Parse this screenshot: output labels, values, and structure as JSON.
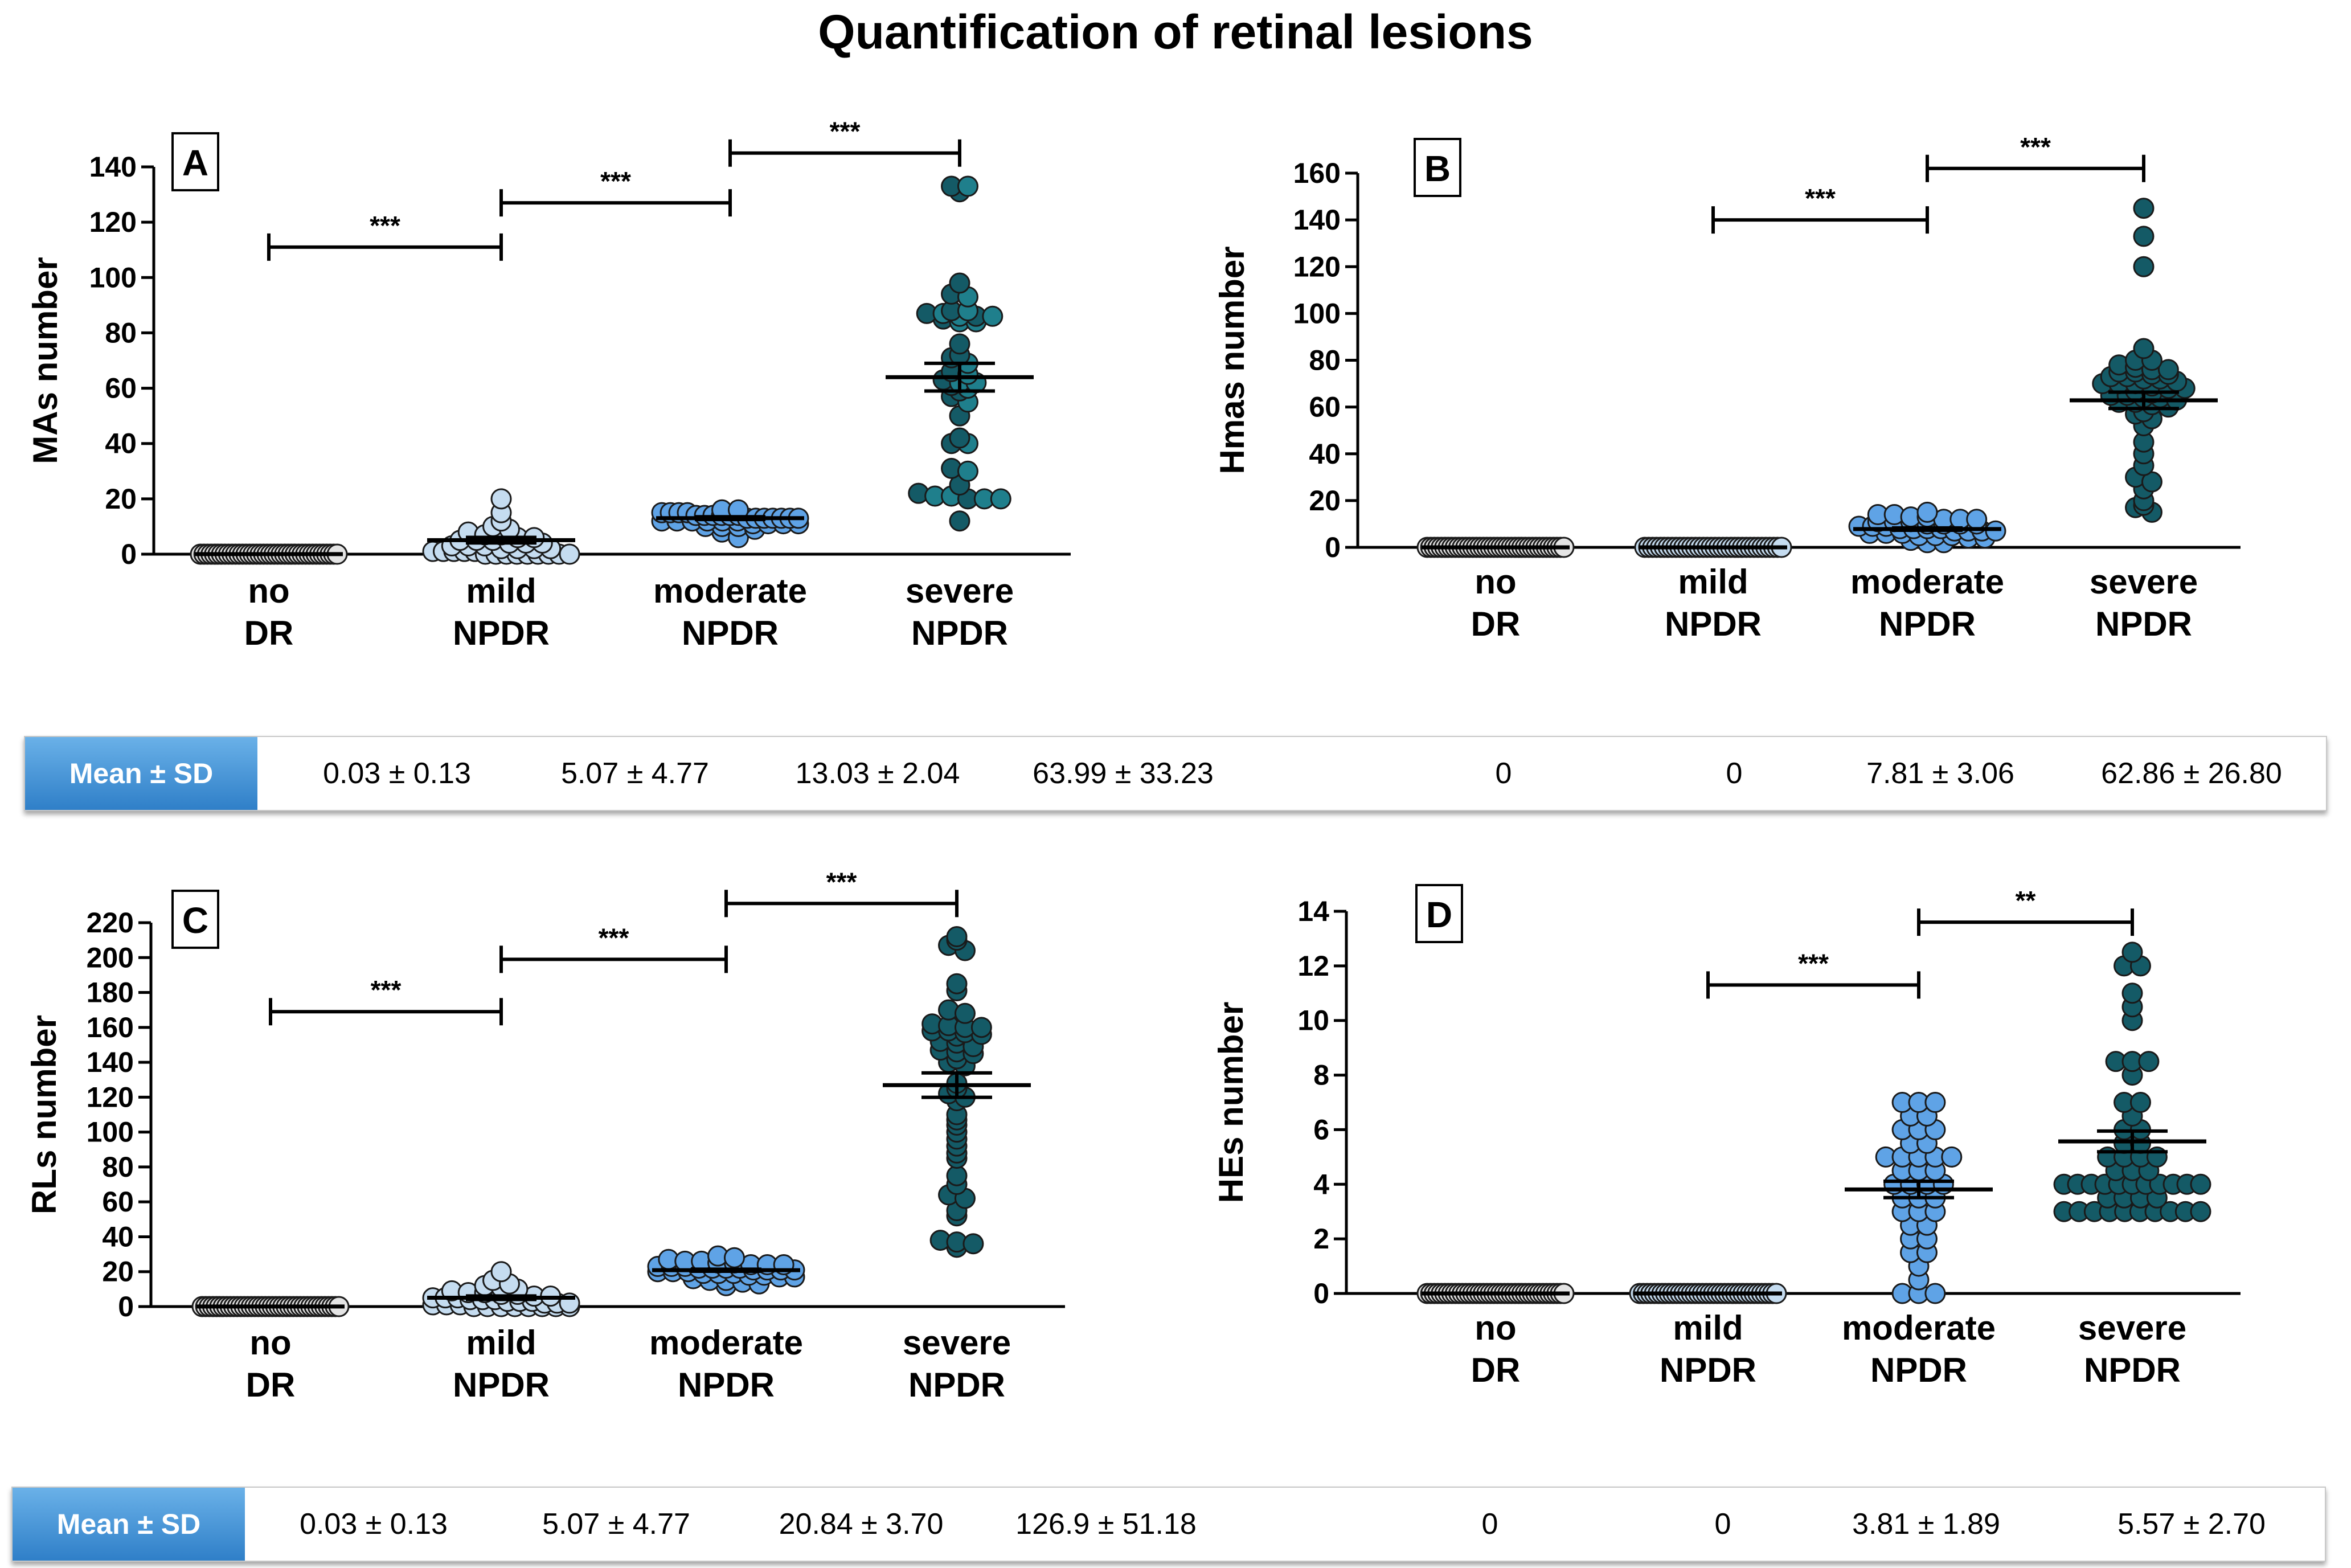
{
  "title": "Quantification of retinal lesions",
  "stats_header": "Mean ± SD",
  "stats_top": [
    "0.03 ± 0.13",
    "5.07 ± 4.77",
    "13.03 ± 2.04",
    "63.99 ± 33.23",
    "0",
    "0",
    "7.81 ± 3.06",
    "62.86 ± 26.80"
  ],
  "stats_bottom": [
    "0.03 ± 0.13",
    "5.07 ± 4.77",
    "20.84 ± 3.70",
    "126.9 ± 51.18",
    "0",
    "0",
    "3.81 ± 1.89",
    "5.57 ± 2.70"
  ],
  "colors": {
    "noDR": "#e4e4e4",
    "mild": "#c5dcf0",
    "moderate": "#5fa3e6",
    "severe_teal": "#1f7f8c",
    "severe_dark": "#145a66",
    "header": "#3a8ad4"
  },
  "chart_data": [
    {
      "panel": "A",
      "type": "scatter",
      "ylabel": "MAs number",
      "categories": [
        [
          "no",
          "DR"
        ],
        [
          "mild",
          "NPDR"
        ],
        [
          "moderate",
          "NPDR"
        ],
        [
          "severe",
          "NPDR"
        ]
      ],
      "ylim": [
        0,
        140
      ],
      "yticks": [
        0,
        20,
        40,
        60,
        80,
        100,
        120,
        140
      ],
      "series": [
        {
          "name": "no DR",
          "color": "#e4e4e4",
          "values": [
            0,
            0,
            0,
            0,
            0,
            0,
            0,
            0,
            0,
            0,
            0,
            0,
            0,
            0,
            0,
            0,
            0,
            0,
            0,
            0,
            0,
            0,
            0,
            0,
            0,
            0,
            0,
            0,
            0,
            0,
            0,
            0,
            0,
            0,
            0,
            0,
            0,
            0,
            0,
            0
          ]
        },
        {
          "name": "mild NPDR",
          "color": "#c5dcf0",
          "values": [
            20,
            15,
            12,
            10,
            9,
            8,
            7,
            7,
            6,
            6,
            5,
            5,
            5,
            4,
            4,
            4,
            3,
            3,
            3,
            2,
            2,
            2,
            2,
            1,
            1,
            1,
            1,
            1,
            0,
            0,
            0,
            0,
            0,
            0,
            0,
            0,
            0
          ]
        },
        {
          "name": "moderate NPDR",
          "color": "#5fa3e6",
          "values": [
            16,
            16,
            15,
            15,
            15,
            15,
            14,
            14,
            14,
            14,
            14,
            14,
            13,
            13,
            13,
            13,
            13,
            13,
            13,
            12,
            12,
            12,
            12,
            12,
            12,
            11,
            11,
            11,
            11,
            10,
            10,
            10,
            9,
            8,
            6
          ]
        },
        {
          "name": "severe NPDR",
          "color": "#1f7f8c",
          "values": [
            133,
            133,
            131,
            98,
            94,
            93,
            88,
            88,
            87,
            87,
            86,
            86,
            86,
            85,
            84,
            84,
            76,
            72,
            71,
            69,
            66,
            65,
            63,
            62,
            62,
            61,
            60,
            59,
            57,
            55,
            50,
            42,
            40,
            40,
            31,
            30,
            25,
            22,
            21,
            21,
            20,
            20,
            20,
            12
          ]
        }
      ],
      "means": [
        0.03,
        5.07,
        13.03,
        63.99
      ],
      "sem": [
        0,
        1,
        0.5,
        5
      ],
      "significance": [
        {
          "from": 0,
          "to": 1,
          "y": 111,
          "label": "***"
        },
        {
          "from": 1,
          "to": 2,
          "y": 127,
          "label": "***"
        },
        {
          "from": 2,
          "to": 3,
          "y": 145,
          "label": "***"
        }
      ]
    },
    {
      "panel": "B",
      "type": "scatter",
      "ylabel": "Hmas number",
      "categories": [
        [
          "no",
          "DR"
        ],
        [
          "mild",
          "NPDR"
        ],
        [
          "moderate",
          "NPDR"
        ],
        [
          "severe",
          "NPDR"
        ]
      ],
      "ylim": [
        0,
        160
      ],
      "yticks": [
        0,
        20,
        40,
        60,
        80,
        100,
        120,
        140,
        160
      ],
      "series": [
        {
          "name": "no DR",
          "color": "#e4e4e4",
          "values": [
            0,
            0,
            0,
            0,
            0,
            0,
            0,
            0,
            0,
            0,
            0,
            0,
            0,
            0,
            0,
            0,
            0,
            0,
            0,
            0,
            0,
            0,
            0,
            0,
            0,
            0,
            0,
            0,
            0,
            0,
            0,
            0,
            0,
            0,
            0,
            0,
            0,
            0,
            0,
            0
          ]
        },
        {
          "name": "mild NPDR",
          "color": "#c5dcf0",
          "values": [
            0,
            0,
            0,
            0,
            0,
            0,
            0,
            0,
            0,
            0,
            0,
            0,
            0,
            0,
            0,
            0,
            0,
            0,
            0,
            0,
            0,
            0,
            0,
            0,
            0,
            0,
            0,
            0,
            0,
            0,
            0,
            0,
            0,
            0,
            0,
            0
          ]
        },
        {
          "name": "moderate NPDR",
          "color": "#5fa3e6",
          "values": [
            15,
            14,
            14,
            13,
            13,
            12,
            12,
            12,
            11,
            11,
            11,
            10,
            10,
            10,
            10,
            9,
            9,
            9,
            8,
            8,
            8,
            8,
            7,
            7,
            7,
            7,
            6,
            6,
            6,
            5,
            5,
            5,
            4,
            4,
            3,
            2,
            2
          ]
        },
        {
          "name": "severe NPDR",
          "color": "#145a66",
          "values": [
            145,
            133,
            120,
            85,
            80,
            80,
            78,
            77,
            76,
            76,
            75,
            75,
            74,
            74,
            73,
            73,
            72,
            72,
            71,
            70,
            70,
            70,
            69,
            68,
            68,
            67,
            66,
            65,
            65,
            64,
            64,
            63,
            62,
            62,
            61,
            60,
            58,
            57,
            55,
            52,
            45,
            40,
            35,
            30,
            28,
            25,
            20,
            18,
            17,
            15
          ]
        }
      ],
      "means": [
        0,
        0,
        7.81,
        62.86
      ],
      "sem": [
        0,
        0,
        0.5,
        3.5
      ],
      "significance": [
        {
          "from": 1,
          "to": 2,
          "y": 140,
          "label": "***"
        },
        {
          "from": 2,
          "to": 3,
          "y": 162,
          "label": "***"
        }
      ]
    },
    {
      "panel": "C",
      "type": "scatter",
      "ylabel": "RLs number",
      "categories": [
        [
          "no",
          "DR"
        ],
        [
          "mild",
          "NPDR"
        ],
        [
          "moderate",
          "NPDR"
        ],
        [
          "severe",
          "NPDR"
        ]
      ],
      "ylim": [
        0,
        220
      ],
      "yticks": [
        0,
        20,
        40,
        60,
        80,
        100,
        120,
        140,
        160,
        180,
        200,
        220
      ],
      "series": [
        {
          "name": "no DR",
          "color": "#e4e4e4",
          "values": [
            0,
            0,
            0,
            0,
            0,
            0,
            0,
            0,
            0,
            0,
            0,
            0,
            0,
            0,
            0,
            0,
            0,
            0,
            0,
            0,
            0,
            0,
            0,
            0,
            0,
            0,
            0,
            0,
            0,
            0,
            0,
            0,
            0,
            0,
            0,
            0,
            0,
            0,
            0,
            0
          ]
        },
        {
          "name": "mild NPDR",
          "color": "#c5dcf0",
          "values": [
            20,
            15,
            13,
            12,
            11,
            10,
            9,
            8,
            8,
            7,
            7,
            6,
            6,
            5,
            5,
            5,
            4,
            4,
            4,
            3,
            3,
            3,
            2,
            2,
            2,
            1,
            1,
            1,
            0,
            0,
            0,
            0,
            0,
            0,
            0,
            0
          ]
        },
        {
          "name": "moderate NPDR",
          "color": "#5fa3e6",
          "values": [
            29,
            28,
            27,
            26,
            26,
            25,
            25,
            24,
            24,
            24,
            23,
            23,
            23,
            22,
            22,
            22,
            22,
            21,
            21,
            21,
            21,
            20,
            20,
            20,
            19,
            19,
            19,
            18,
            18,
            17,
            17,
            16,
            15,
            15,
            14,
            13,
            12
          ]
        },
        {
          "name": "severe NPDR",
          "color": "#145a66",
          "values": [
            212,
            210,
            207,
            204,
            185,
            181,
            170,
            168,
            162,
            161,
            160,
            160,
            158,
            158,
            157,
            156,
            155,
            152,
            151,
            149,
            147,
            146,
            145,
            142,
            140,
            138,
            128,
            125,
            122,
            120,
            118,
            110,
            107,
            104,
            100,
            96,
            92,
            88,
            85,
            75,
            70,
            64,
            62,
            55,
            52,
            38,
            37,
            36,
            34
          ]
        }
      ],
      "means": [
        0.03,
        5.07,
        20.84,
        126.9
      ],
      "sem": [
        0,
        1,
        0.6,
        7
      ],
      "significance": [
        {
          "from": 0,
          "to": 1,
          "y": 169,
          "label": "***"
        },
        {
          "from": 1,
          "to": 2,
          "y": 199,
          "label": "***"
        },
        {
          "from": 2,
          "to": 3,
          "y": 231,
          "label": "***"
        }
      ]
    },
    {
      "panel": "D",
      "type": "scatter",
      "ylabel": "HEs number",
      "categories": [
        [
          "no",
          "DR"
        ],
        [
          "mild",
          "NPDR"
        ],
        [
          "moderate",
          "NPDR"
        ],
        [
          "severe",
          "NPDR"
        ]
      ],
      "ylim": [
        0,
        14
      ],
      "yticks": [
        0,
        2,
        4,
        6,
        8,
        10,
        12,
        14
      ],
      "series": [
        {
          "name": "no DR",
          "color": "#e4e4e4",
          "values": [
            0,
            0,
            0,
            0,
            0,
            0,
            0,
            0,
            0,
            0,
            0,
            0,
            0,
            0,
            0,
            0,
            0,
            0,
            0,
            0,
            0,
            0,
            0,
            0,
            0,
            0,
            0,
            0,
            0,
            0,
            0,
            0,
            0,
            0,
            0,
            0,
            0,
            0,
            0,
            0
          ]
        },
        {
          "name": "mild NPDR",
          "color": "#c5dcf0",
          "values": [
            0,
            0,
            0,
            0,
            0,
            0,
            0,
            0,
            0,
            0,
            0,
            0,
            0,
            0,
            0,
            0,
            0,
            0,
            0,
            0,
            0,
            0,
            0,
            0,
            0,
            0,
            0,
            0,
            0,
            0,
            0,
            0,
            0,
            0,
            0,
            0,
            0,
            0
          ]
        },
        {
          "name": "moderate NPDR",
          "color": "#5fa3e6",
          "values": [
            7,
            7,
            7,
            6.5,
            6.5,
            6,
            6,
            6,
            5.5,
            5.5,
            5,
            5,
            5,
            5,
            5,
            4.5,
            4.5,
            4.5,
            4,
            4,
            4,
            4,
            3.5,
            3.5,
            3.5,
            3,
            3,
            3,
            2.5,
            2.5,
            2,
            2,
            1.5,
            1.5,
            1,
            0.5,
            0,
            0,
            0
          ]
        },
        {
          "name": "severe NPDR",
          "color": "#145a66",
          "values": [
            12.5,
            12,
            12,
            11,
            10.5,
            10,
            8.5,
            8.5,
            8.5,
            8,
            7,
            7,
            6.5,
            6,
            6,
            5.5,
            5.5,
            5,
            5,
            5,
            5,
            4.5,
            4.5,
            4.5,
            4,
            4,
            4,
            4,
            4,
            4,
            4,
            4,
            4,
            4,
            4,
            3.5,
            3.5,
            3.5,
            3.5,
            3,
            3,
            3,
            3,
            3,
            3,
            3,
            3,
            3,
            3
          ]
        }
      ],
      "means": [
        0,
        0,
        3.81,
        5.57
      ],
      "sem": [
        0,
        0,
        0.3,
        0.38
      ],
      "significance": [
        {
          "from": 1,
          "to": 2,
          "y": 11.3,
          "label": "***"
        },
        {
          "from": 2,
          "to": 3,
          "y": 13.6,
          "label": "**"
        }
      ]
    }
  ]
}
